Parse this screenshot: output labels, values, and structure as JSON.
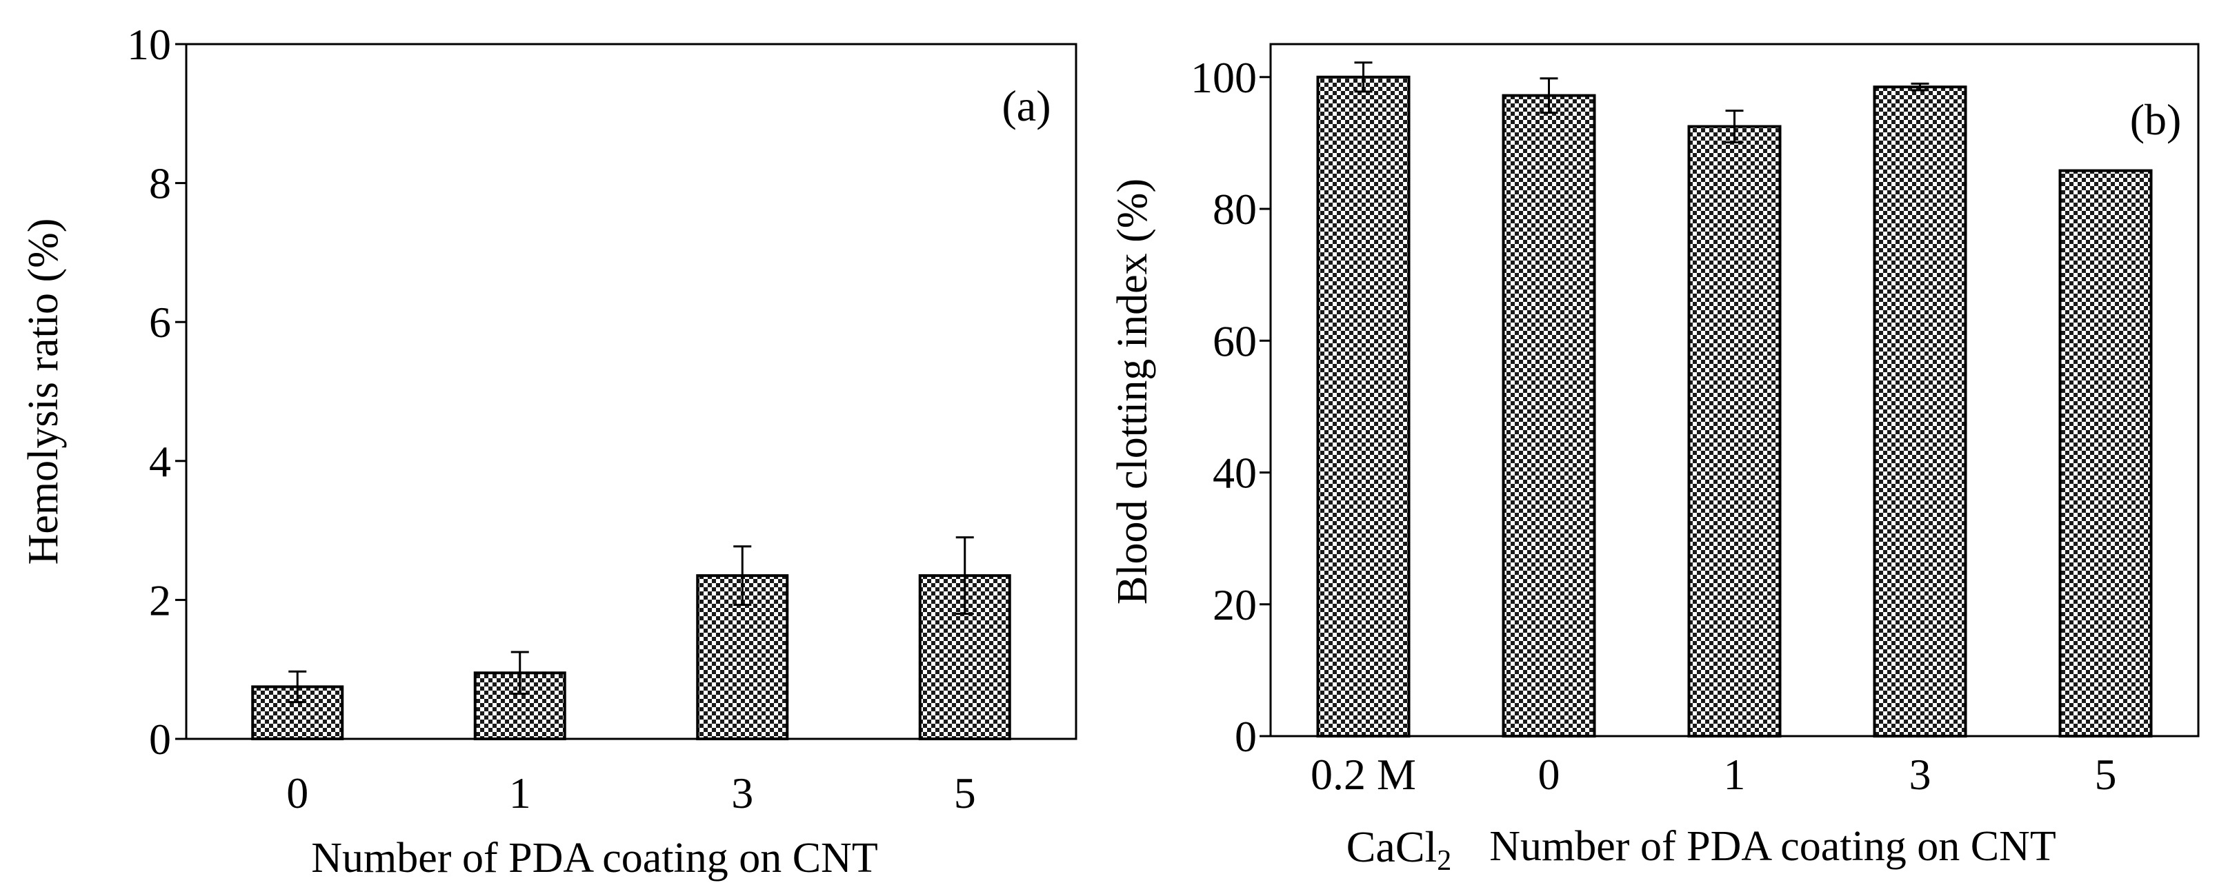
{
  "colors": {
    "bar_fill": "#ffffff",
    "bar_dots": "#000000",
    "axis": "#000000"
  },
  "chart_data": [
    {
      "type": "bar",
      "panel_label": "(a)",
      "categories": [
        "0",
        "1",
        "3",
        "5"
      ],
      "values": [
        0.75,
        0.95,
        2.35,
        2.35
      ],
      "errors": [
        0.22,
        0.3,
        0.42,
        0.55
      ],
      "xlabel": "Number of PDA coating on CNT",
      "ylabel": "Hemolysis ratio (%)",
      "ylim": [
        0,
        10
      ],
      "yticks": [
        "0",
        "2",
        "4",
        "6",
        "8",
        "10"
      ],
      "grid": false,
      "frame": "box"
    },
    {
      "type": "bar",
      "panel_label": "(b)",
      "categories": [
        "0.2 M",
        "0",
        "1",
        "3",
        "5"
      ],
      "category_sublabel": {
        "text": "CaCl",
        "subscript": "2"
      },
      "values": [
        100,
        97.2,
        92.5,
        98.5,
        85.8
      ],
      "errors": [
        2.2,
        2.6,
        2.4,
        0.5,
        0
      ],
      "xlabel": "Number of PDA coating on CNT",
      "ylabel": "Blood clotting index (%)",
      "ylim": [
        0,
        105
      ],
      "yticks": [
        "0",
        "20",
        "40",
        "60",
        "80",
        "100"
      ],
      "grid": false,
      "frame": "box"
    }
  ]
}
